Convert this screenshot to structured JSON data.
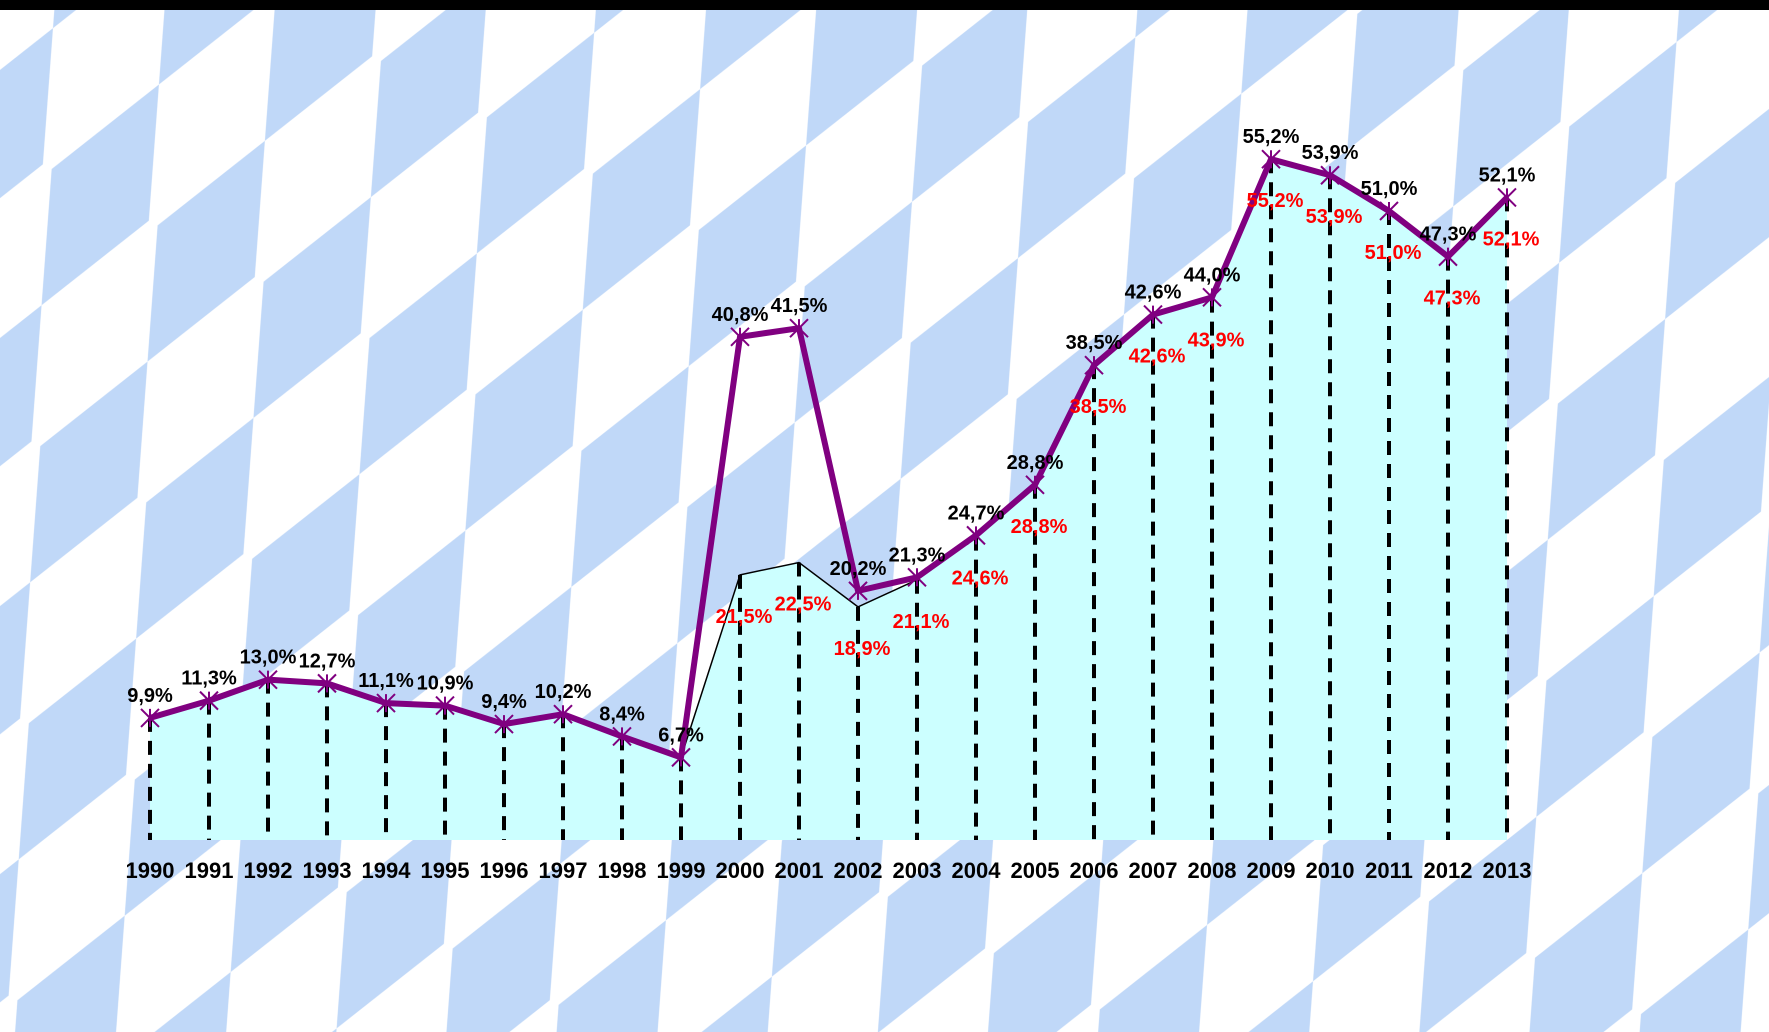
{
  "chart_data": {
    "type": "line",
    "title": "",
    "xlabel": "",
    "ylabel": "",
    "ylim": [
      0,
      60
    ],
    "categories": [
      "1990",
      "1991",
      "1992",
      "1993",
      "1994",
      "1995",
      "1996",
      "1997",
      "1998",
      "1999",
      "2000",
      "2001",
      "2002",
      "2003",
      "2004",
      "2005",
      "2006",
      "2007",
      "2008",
      "2009",
      "2010",
      "2011",
      "2012",
      "2013"
    ],
    "series": [
      {
        "values": [
          9.9,
          11.3,
          13.0,
          12.7,
          11.1,
          10.9,
          9.4,
          10.2,
          8.4,
          6.7,
          40.8,
          41.5,
          20.2,
          21.3,
          24.7,
          28.8,
          38.5,
          42.6,
          44.0,
          55.2,
          53.9,
          51.0,
          47.3,
          52.1
        ],
        "labels": [
          "9,9%",
          "11,3%",
          "13,0%",
          "12,7%",
          "11,1%",
          "10,9%",
          "9,4%",
          "10,2%",
          "8,4%",
          "6,7%",
          "40,8%",
          "41,5%",
          "20,2%",
          "21,3%",
          "24,7%",
          "28,8%",
          "38,5%",
          "42,6%",
          "44,0%",
          "55,2%",
          "53,9%",
          "51,0%",
          "47,3%",
          "52,1%"
        ],
        "color": "#800080",
        "label_color": "#000000"
      },
      {
        "values": [
          9.9,
          11.3,
          13.0,
          12.7,
          11.1,
          10.9,
          9.4,
          10.2,
          8.4,
          6.7,
          21.5,
          22.5,
          18.9,
          21.1,
          24.6,
          28.8,
          38.5,
          42.6,
          43.9,
          55.2,
          53.9,
          51.0,
          47.3,
          52.1
        ],
        "labels": [
          "",
          "",
          "",
          "",
          "",
          "",
          "",
          "",
          "",
          "",
          "21,5%",
          "22,5%",
          "18,9%",
          "21,1%",
          "24,6%",
          "28,8%",
          "38,5%",
          "42,6%",
          "43,9%",
          "55,2%",
          "53,9%",
          "51,0%",
          "47,3%",
          "52,1%"
        ],
        "color": "#000000",
        "fill": "#ccffff",
        "label_color": "#ff0000"
      }
    ],
    "grid": false,
    "legend": "none",
    "drop_lines": "dashed"
  },
  "colors": {
    "background_pattern_light": "#ffffff",
    "background_pattern_blue": "#c0d8f8"
  }
}
